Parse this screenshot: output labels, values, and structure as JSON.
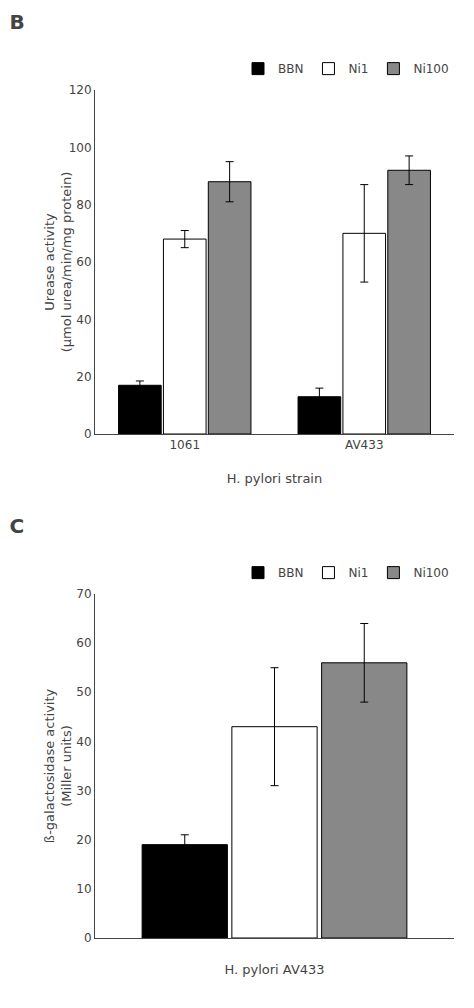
{
  "chart_data": [
    {
      "type": "bar",
      "title": "B",
      "categories": [
        "1061",
        "AV433"
      ],
      "series": [
        {
          "name": "BBN",
          "color": "#000000",
          "values": [
            17,
            13
          ],
          "errors": [
            1.5,
            3
          ]
        },
        {
          "name": "Ni1",
          "color": "#ffffff",
          "values": [
            68,
            70
          ],
          "errors": [
            3,
            17
          ]
        },
        {
          "name": "Ni100",
          "color": "#888888",
          "values": [
            88,
            92
          ],
          "errors": [
            7,
            5
          ]
        }
      ],
      "x_label": "H. pylori strain",
      "y_label": "Urease activity\n(µmol urea/min/mg protein)",
      "ylim": [
        0,
        120
      ],
      "yticks": [
        0,
        20,
        40,
        60,
        80,
        100,
        120
      ],
      "grid": false,
      "legend": "upper right"
    },
    {
      "type": "bar",
      "title": "C",
      "categories": [
        null
      ],
      "series": [
        {
          "name": "BBN",
          "color": "#000000",
          "values": [
            19
          ],
          "errors": [
            2
          ]
        },
        {
          "name": "Ni1",
          "color": "#ffffff",
          "values": [
            43
          ],
          "errors": [
            12
          ]
        },
        {
          "name": "Ni100",
          "color": "#888888",
          "values": [
            56
          ],
          "errors": [
            8
          ]
        }
      ],
      "x_label": "H. pylori AV433",
      "y_label": "ß-galactosidase activity\n(Miller units)",
      "ylim": [
        0,
        70
      ],
      "yticks": [
        0,
        10,
        20,
        30,
        40,
        50,
        60,
        70
      ],
      "grid": false,
      "legend": "upper right",
      "tick_labels": "y"
    }
  ]
}
